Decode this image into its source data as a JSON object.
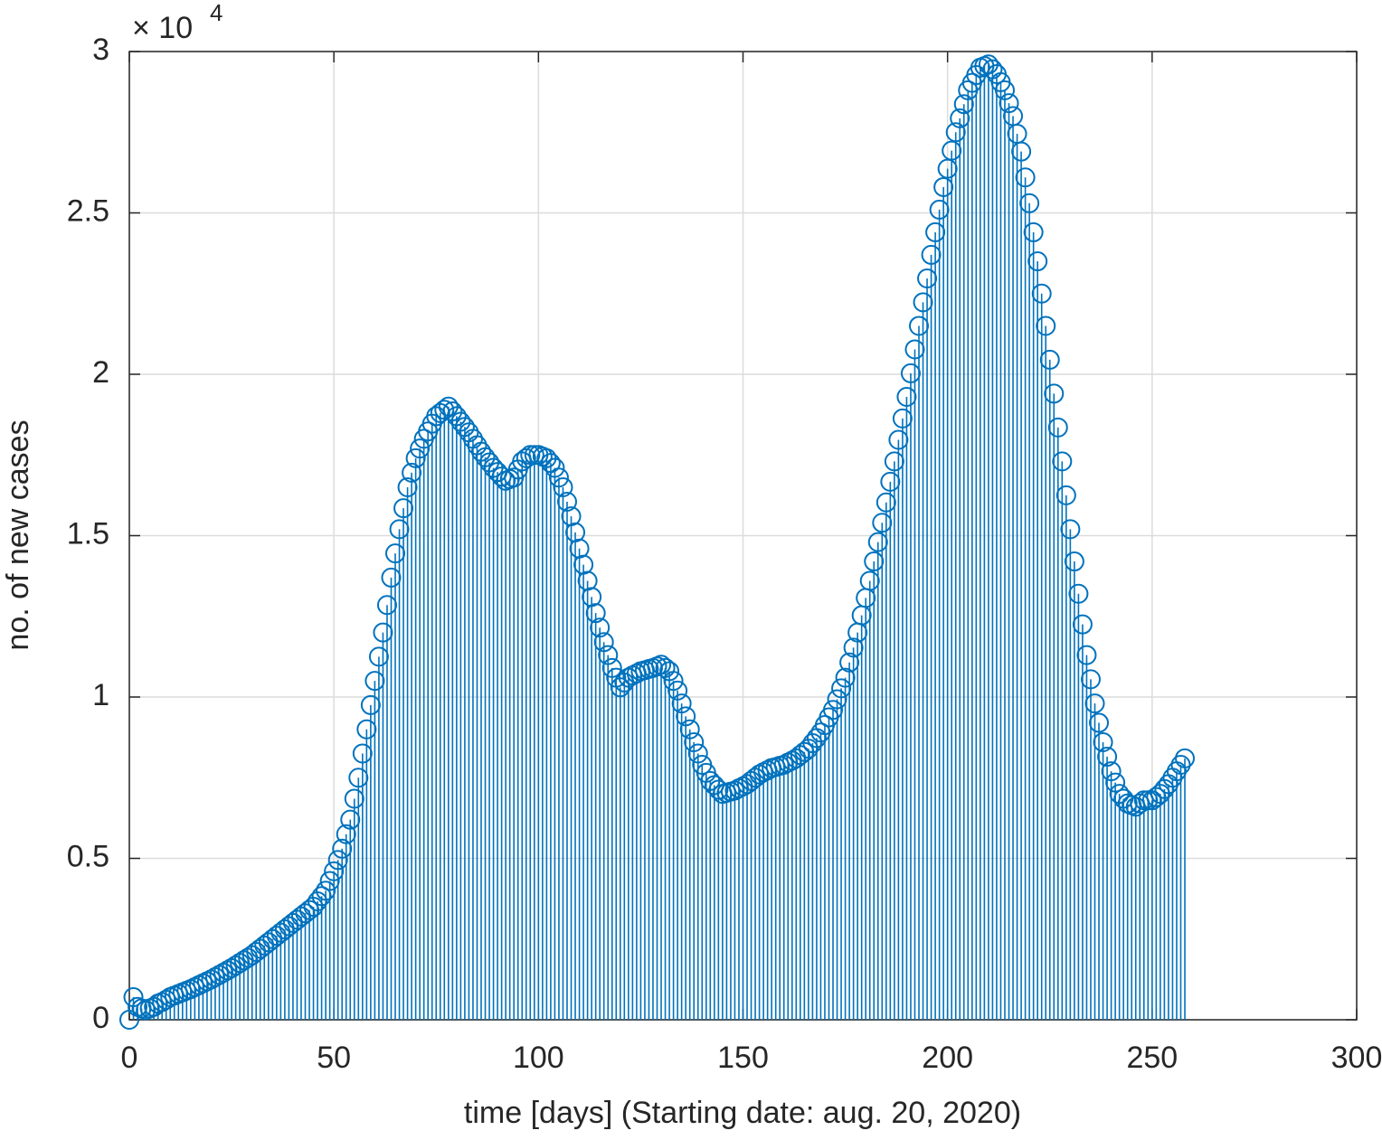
{
  "chart_data": {
    "type": "stem",
    "xlabel": "time [days] (Starting date: aug. 20, 2020)",
    "ylabel": "no. of new cases",
    "y_exponent_base": "× 10",
    "y_exponent_power": "4",
    "xlim": [
      0,
      300
    ],
    "xticks": [
      0,
      50,
      100,
      150,
      200,
      250,
      300
    ],
    "ylim": [
      0,
      30000
    ],
    "yticks": [
      0,
      {
        "value": 5000,
        "label": "0.5"
      },
      {
        "value": 10000,
        "label": "1"
      },
      {
        "value": 15000,
        "label": "1.5"
      },
      {
        "value": 20000,
        "label": "2"
      },
      {
        "value": 25000,
        "label": "2.5"
      },
      {
        "value": 30000,
        "label": "3"
      }
    ],
    "grid": true,
    "color": "#0072bd",
    "x": [
      0,
      1,
      2,
      3,
      4,
      5,
      6,
      7,
      8,
      9,
      10,
      11,
      12,
      13,
      14,
      15,
      16,
      17,
      18,
      19,
      20,
      21,
      22,
      23,
      24,
      25,
      26,
      27,
      28,
      29,
      30,
      31,
      32,
      33,
      34,
      35,
      36,
      37,
      38,
      39,
      40,
      41,
      42,
      43,
      44,
      45,
      46,
      47,
      48,
      49,
      50,
      51,
      52,
      53,
      54,
      55,
      56,
      57,
      58,
      59,
      60,
      61,
      62,
      63,
      64,
      65,
      66,
      67,
      68,
      69,
      70,
      71,
      72,
      73,
      74,
      75,
      76,
      77,
      78,
      79,
      80,
      81,
      82,
      83,
      84,
      85,
      86,
      87,
      88,
      89,
      90,
      91,
      92,
      93,
      94,
      95,
      96,
      97,
      98,
      99,
      100,
      101,
      102,
      103,
      104,
      105,
      106,
      107,
      108,
      109,
      110,
      111,
      112,
      113,
      114,
      115,
      116,
      117,
      118,
      119,
      120,
      121,
      122,
      123,
      124,
      125,
      126,
      127,
      128,
      129,
      130,
      131,
      132,
      133,
      134,
      135,
      136,
      137,
      138,
      139,
      140,
      141,
      142,
      143,
      144,
      145,
      146,
      147,
      148,
      149,
      150,
      151,
      152,
      153,
      154,
      155,
      156,
      157,
      158,
      159,
      160,
      161,
      162,
      163,
      164,
      165,
      166,
      167,
      168,
      169,
      170,
      171,
      172,
      173,
      174,
      175,
      176,
      177,
      178,
      179,
      180,
      181,
      182,
      183,
      184,
      185,
      186,
      187,
      188,
      189,
      190,
      191,
      192,
      193,
      194,
      195,
      196,
      197,
      198,
      199,
      200,
      201,
      202,
      203,
      204,
      205,
      206,
      207,
      208,
      209,
      210,
      211,
      212,
      213,
      214,
      215,
      216,
      217,
      218,
      219,
      220,
      221,
      222,
      223,
      224,
      225,
      226,
      227,
      228,
      229,
      230,
      231,
      232,
      233,
      234,
      235,
      236,
      237,
      238,
      239,
      240,
      241,
      242,
      243,
      244,
      245,
      246,
      247,
      248,
      249,
      250,
      251,
      252,
      253,
      254,
      255,
      256,
      257,
      258
    ],
    "values": [
      0,
      700,
      400,
      350,
      300,
      350,
      400,
      500,
      550,
      620,
      700,
      750,
      800,
      850,
      900,
      950,
      1010,
      1070,
      1130,
      1190,
      1250,
      1320,
      1390,
      1460,
      1530,
      1600,
      1680,
      1760,
      1840,
      1920,
      2000,
      2100,
      2200,
      2300,
      2400,
      2500,
      2600,
      2700,
      2800,
      2900,
      3000,
      3100,
      3200,
      3300,
      3400,
      3500,
      3670,
      3830,
      4000,
      4300,
      4600,
      4950,
      5300,
      5750,
      6200,
      6850,
      7500,
      8250,
      9000,
      9750,
      10500,
      11250,
      12000,
      12850,
      13700,
      14450,
      15200,
      15850,
      16500,
      16950,
      17400,
      17700,
      18000,
      18230,
      18470,
      18700,
      18800,
      18900,
      19000,
      18850,
      18700,
      18530,
      18370,
      18200,
      18000,
      17800,
      17600,
      17430,
      17270,
      17100,
      16970,
      16830,
      16700,
      16750,
      16800,
      17050,
      17300,
      17400,
      17500,
      17500,
      17500,
      17450,
      17400,
      17250,
      17100,
      16800,
      16500,
      16050,
      15600,
      15100,
      14600,
      14100,
      13600,
      13100,
      12600,
      12150,
      11700,
      11300,
      10900,
      10600,
      10300,
      10450,
      10600,
      10670,
      10730,
      10800,
      10830,
      10870,
      10900,
      10950,
      11000,
      10900,
      10800,
      10500,
      10200,
      9800,
      9400,
      9000,
      8600,
      8250,
      7900,
      7650,
      7400,
      7270,
      7130,
      7000,
      7030,
      7070,
      7100,
      7170,
      7230,
      7300,
      7400,
      7500,
      7600,
      7670,
      7730,
      7800,
      7830,
      7870,
      7900,
      7970,
      8030,
      8100,
      8200,
      8300,
      8400,
      8570,
      8730,
      8900,
      9130,
      9370,
      9600,
      9930,
      10270,
      10600,
      11070,
      11530,
      12000,
      12530,
      13070,
      13600,
      14200,
      14800,
      15400,
      16030,
      16670,
      17300,
      17970,
      18630,
      19300,
      20030,
      20770,
      21500,
      22230,
      22970,
      23700,
      24400,
      25100,
      25800,
      26370,
      26930,
      27500,
      27930,
      28370,
      28800,
      29030,
      29270,
      29500,
      29550,
      29600,
      29450,
      29300,
      29050,
      28800,
      28400,
      28000,
      27450,
      26900,
      26100,
      25300,
      24400,
      23500,
      22500,
      21500,
      20450,
      19400,
      18350,
      17300,
      16250,
      15200,
      14200,
      13200,
      12250,
      11300,
      10550,
      9800,
      9200,
      8600,
      8150,
      7700,
      7350,
      7000,
      6850,
      6700,
      6650,
      6600,
      6700,
      6800,
      6800,
      6800,
      6900,
      7000,
      7150,
      7300,
      7500,
      7700,
      7900,
      8100
    ]
  }
}
